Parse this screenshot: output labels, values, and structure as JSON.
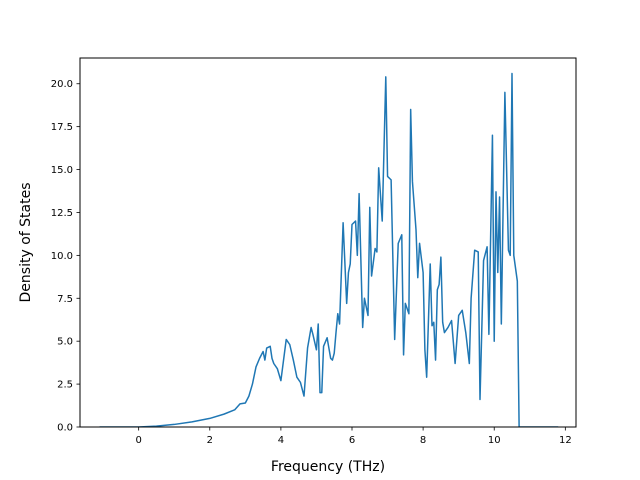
{
  "chart_data": {
    "type": "line",
    "title": "",
    "xlabel": "Frequency (THz)",
    "ylabel": "Density of States",
    "xlim": [
      -1.65,
      12.3
    ],
    "ylim": [
      0,
      21.5
    ],
    "grid": false,
    "line_color": "#1f77b4",
    "xticks": [
      0,
      2,
      4,
      6,
      8,
      10,
      12
    ],
    "xtick_labels": [
      "0",
      "2",
      "4",
      "6",
      "8",
      "10",
      "12"
    ],
    "yticks": [
      0,
      2.5,
      5,
      7.5,
      10,
      12.5,
      15,
      17.5,
      20
    ],
    "ytick_labels": [
      "0.0",
      "2.5",
      "5.0",
      "7.5",
      "10.0",
      "12.5",
      "15.0",
      "17.5",
      "20.0"
    ],
    "series": [
      {
        "x": [
          -1.1,
          -0.5,
          0.0,
          0.5,
          1.0,
          1.5,
          2.0,
          2.4,
          2.7,
          2.85,
          3.0,
          3.1,
          3.2,
          3.3,
          3.4,
          3.5,
          3.55,
          3.6,
          3.7,
          3.75,
          3.8,
          3.9,
          4.0,
          4.05,
          4.15,
          4.25,
          4.35,
          4.45,
          4.55,
          4.65,
          4.75,
          4.85,
          4.9,
          5.0,
          5.05,
          5.1,
          5.15,
          5.2,
          5.3,
          5.4,
          5.45,
          5.5,
          5.55,
          5.6,
          5.65,
          5.75,
          5.85,
          5.9,
          5.95,
          6.0,
          6.1,
          6.15,
          6.2,
          6.3,
          6.35,
          6.45,
          6.5,
          6.55,
          6.65,
          6.7,
          6.75,
          6.85,
          6.95,
          7.0,
          7.1,
          7.2,
          7.3,
          7.4,
          7.45,
          7.5,
          7.6,
          7.65,
          7.7,
          7.8,
          7.85,
          7.9,
          8.0,
          8.05,
          8.1,
          8.2,
          8.25,
          8.3,
          8.35,
          8.4,
          8.45,
          8.5,
          8.55,
          8.6,
          8.7,
          8.8,
          8.9,
          9.0,
          9.1,
          9.2,
          9.3,
          9.35,
          9.45,
          9.55,
          9.6,
          9.7,
          9.8,
          9.85,
          9.95,
          10.0,
          10.05,
          10.1,
          10.15,
          10.2,
          10.3,
          10.4,
          10.45,
          10.5,
          10.55,
          10.65,
          10.7,
          10.75,
          11.0,
          11.5,
          11.8
        ],
        "y": [
          0,
          0,
          0,
          0.05,
          0.15,
          0.3,
          0.5,
          0.75,
          1.0,
          1.35,
          1.4,
          1.8,
          2.5,
          3.5,
          4.0,
          4.4,
          3.9,
          4.6,
          4.7,
          4.0,
          3.7,
          3.4,
          2.7,
          3.5,
          5.1,
          4.8,
          3.9,
          2.9,
          2.6,
          1.8,
          4.6,
          5.8,
          5.4,
          4.5,
          6.0,
          2.0,
          2.0,
          4.7,
          5.2,
          4.0,
          3.9,
          4.3,
          5.5,
          6.6,
          6.0,
          11.9,
          7.2,
          9.0,
          9.5,
          11.8,
          12.0,
          10.0,
          13.6,
          5.8,
          7.5,
          6.5,
          12.8,
          8.8,
          10.4,
          10.2,
          15.1,
          12.0,
          20.4,
          14.6,
          14.4,
          5.1,
          10.7,
          11.2,
          4.2,
          7.2,
          6.6,
          18.5,
          14.3,
          11.5,
          8.7,
          10.7,
          9.0,
          4.5,
          2.9,
          9.5,
          5.9,
          6.1,
          3.9,
          8.0,
          8.3,
          9.9,
          6.1,
          5.5,
          5.8,
          6.2,
          3.7,
          6.5,
          6.8,
          5.5,
          3.7,
          7.5,
          10.3,
          10.2,
          1.6,
          9.7,
          10.5,
          5.4,
          17.0,
          5.0,
          13.7,
          9.0,
          13.4,
          6.0,
          19.5,
          10.3,
          10.0,
          20.6,
          10.0,
          8.5,
          0.0,
          0.0,
          0.0,
          0.0,
          0.0
        ]
      }
    ]
  }
}
